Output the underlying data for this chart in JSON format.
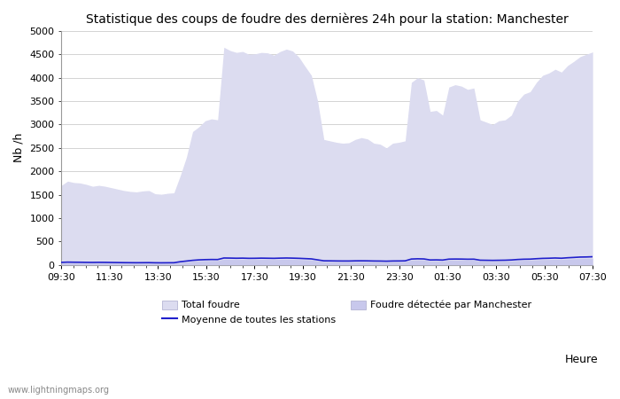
{
  "title": "Statistique des coups de foudre des dernières 24h pour la station: Manchester",
  "ylabel": "Nb /h",
  "xlabel": "Heure",
  "watermark": "www.lightningmaps.org",
  "ylim": [
    0,
    5000
  ],
  "yticks": [
    0,
    500,
    1000,
    1500,
    2000,
    2500,
    3000,
    3500,
    4000,
    4500,
    5000
  ],
  "xtick_labels": [
    "09:30",
    "11:30",
    "13:30",
    "15:30",
    "17:30",
    "19:30",
    "21:30",
    "23:30",
    "01:30",
    "03:30",
    "05:30",
    "07:30"
  ],
  "fill_color_total": "#dcdcf0",
  "fill_color_station": "#c8c8ec",
  "line_color": "#2020cc",
  "bg_color": "#ffffff",
  "grid_color": "#cccccc",
  "total_foudre": [
    1700,
    1790,
    1760,
    1750,
    1720,
    1680,
    1700,
    1680,
    1650,
    1620,
    1590,
    1570,
    1560,
    1580,
    1590,
    1520,
    1510,
    1530,
    1540,
    1900,
    2300,
    2850,
    2950,
    3080,
    3120,
    3100,
    4650,
    4580,
    4540,
    4560,
    4500,
    4510,
    4540,
    4530,
    4480,
    4560,
    4610,
    4570,
    4440,
    4240,
    4050,
    3500,
    2680,
    2650,
    2620,
    2600,
    2610,
    2680,
    2720,
    2690,
    2600,
    2580,
    2500,
    2600,
    2620,
    2650,
    3900,
    4000,
    3950,
    3280,
    3300,
    3200,
    3800,
    3850,
    3820,
    3750,
    3780,
    3100,
    3050,
    3000,
    3080,
    3100,
    3200,
    3500,
    3650,
    3700,
    3900,
    4050,
    4100,
    4180,
    4120,
    4260,
    4350,
    4450,
    4500,
    4550
  ],
  "station_foudre": [
    45,
    50,
    48,
    47,
    45,
    44,
    46,
    45,
    43,
    41,
    39,
    38,
    37,
    38,
    39,
    36,
    35,
    36,
    37,
    55,
    68,
    80,
    88,
    92,
    95,
    94,
    120,
    118,
    116,
    118,
    115,
    116,
    118,
    117,
    115,
    118,
    120,
    118,
    115,
    110,
    105,
    88,
    72,
    70,
    69,
    68,
    68,
    70,
    71,
    70,
    68,
    67,
    65,
    68,
    69,
    70,
    102,
    106,
    104,
    86,
    88,
    84,
    100,
    102,
    101,
    99,
    100,
    82,
    80,
    78,
    80,
    82,
    86,
    94,
    99,
    100,
    108,
    114,
    116,
    120,
    116,
    124,
    130,
    136,
    138,
    142
  ],
  "moyenne": [
    55,
    60,
    58,
    57,
    55,
    54,
    56,
    55,
    53,
    51,
    49,
    48,
    47,
    48,
    49,
    46,
    45,
    46,
    47,
    68,
    83,
    98,
    108,
    113,
    116,
    115,
    148,
    146,
    143,
    145,
    141,
    142,
    145,
    143,
    141,
    145,
    148,
    145,
    141,
    135,
    129,
    108,
    88,
    87,
    85,
    84,
    84,
    87,
    88,
    87,
    84,
    83,
    80,
    84,
    85,
    87,
    126,
    131,
    128,
    106,
    108,
    104,
    124,
    126,
    125,
    122,
    123,
    101,
    99,
    97,
    99,
    101,
    106,
    116,
    122,
    124,
    133,
    140,
    143,
    148,
    143,
    153,
    160,
    168,
    170,
    175
  ]
}
